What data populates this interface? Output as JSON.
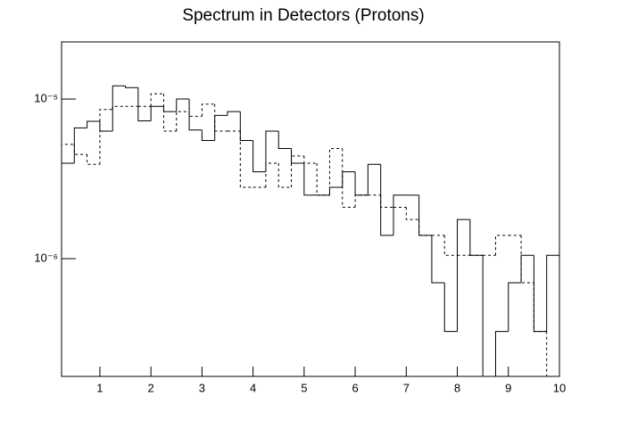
{
  "chart_data": {
    "type": "histogram",
    "title": "Spectrum in Detectors (Protons)",
    "bins": [
      0.25,
      0.5,
      0.75,
      1.0,
      1.25,
      1.5,
      1.75,
      2.0,
      2.25,
      2.5,
      2.75,
      3.0,
      3.25,
      3.5,
      3.75,
      4.0,
      4.25,
      4.5,
      4.75,
      5.0,
      5.25,
      5.5,
      5.75,
      6.0,
      6.25,
      6.5,
      6.75,
      7.0,
      7.25,
      7.5,
      7.75,
      8.0,
      8.25,
      8.5,
      8.75,
      9.0,
      9.25,
      9.5,
      9.75,
      10.0
    ],
    "series": [
      {
        "color": "#000000",
        "line_style": "solid",
        "values": [
          3.96e-06,
          6.6e-06,
          7.25e-06,
          6.3e-06,
          1.21e-05,
          1.18e-05,
          7.3e-06,
          9e-06,
          8.35e-06,
          1e-05,
          6.4e-06,
          5.5e-06,
          7.9e-06,
          8.35e-06,
          5.5e-06,
          3.5e-06,
          6.3e-06,
          4.9e-06,
          3.96e-06,
          2.5e-06,
          2.5e-06,
          2.8e-06,
          3.5e-06,
          2.5e-06,
          3.9e-06,
          1.4e-06,
          2.5e-06,
          2.5e-06,
          1.4e-06,
          7.07e-07,
          3.5e-07,
          1.76e-06,
          1.05e-06,
          0,
          3.5e-07,
          7.07e-07,
          1.05e-06,
          3.5e-07,
          1.05e-06
        ]
      },
      {
        "color": "#000000",
        "line_style": "dashed",
        "values": [
          5.2e-06,
          4.5e-06,
          3.9e-06,
          8.6e-06,
          9e-06,
          9e-06,
          9e-06,
          1.08e-05,
          6.3e-06,
          8.35e-06,
          7.8e-06,
          9.3e-06,
          6.3e-06,
          6.3e-06,
          2.8e-06,
          2.8e-06,
          3.96e-06,
          2.8e-06,
          4.4e-06,
          3.96e-06,
          2.5e-06,
          4.9e-06,
          2.1e-06,
          2.5e-06,
          2.5e-06,
          2.1e-06,
          2.1e-06,
          1.76e-06,
          1.4e-06,
          1.4e-06,
          1.05e-06,
          1.05e-06,
          1.05e-06,
          1.05e-06,
          1.4e-06,
          1.4e-06,
          7.07e-07,
          3.5e-07,
          0
        ]
      }
    ],
    "xlim": [
      0.25,
      10
    ],
    "xticks": [
      1,
      2,
      3,
      4,
      5,
      6,
      7,
      8,
      9,
      10
    ],
    "ylim": [
      1.83e-07,
      2.28e-05
    ],
    "yticks": [
      {
        "value": 1e-06,
        "label": "10⁻⁶"
      },
      {
        "value": 1e-05,
        "label": "10⁻⁵"
      }
    ],
    "log_y": true
  }
}
